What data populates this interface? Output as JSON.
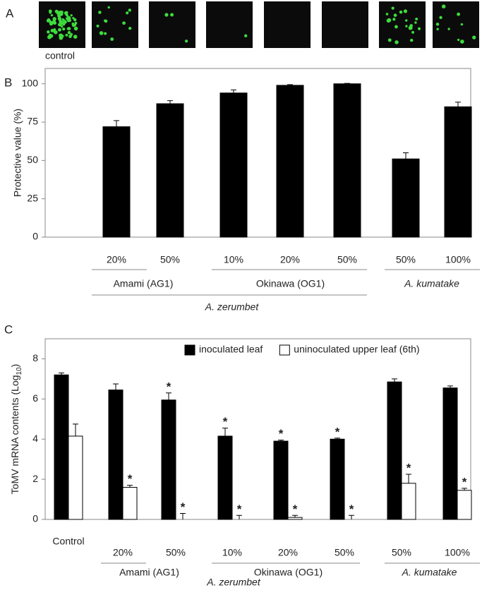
{
  "panel_labels": [
    "A",
    "B",
    "C"
  ],
  "panel_a": {
    "caption": "control"
  },
  "chart_data": [
    {
      "type": "bar",
      "ylabel": "Protective value (%)",
      "categories": [
        "20%",
        "50%",
        "10%",
        "20%",
        "50%",
        "50%",
        "100%"
      ],
      "group_labels": [
        "Amami (AG1)",
        "Okinawa (OG1)",
        "A. kumatake"
      ],
      "supergroup_label": "A. zerumbet",
      "values": [
        72,
        87,
        94,
        99,
        100,
        51,
        85
      ],
      "errors": [
        4,
        2,
        2,
        0.5,
        0.3,
        4,
        3
      ],
      "color": "#000000",
      "ylim": [
        0,
        110
      ],
      "yticks": [
        0,
        25,
        50,
        75,
        100
      ]
    },
    {
      "type": "bar",
      "ylabel": [
        "ToMV mRNA contents (Log",
        "10",
        ")"
      ],
      "categories": [
        "Control",
        "20%",
        "50%",
        "10%",
        "20%",
        "50%",
        "50%",
        "100%"
      ],
      "group_labels": [
        "Amami (AG1)",
        "Okinawa (OG1)",
        "A. kumatake"
      ],
      "supergroup_label": "A. zerumbet",
      "series": [
        {
          "name": "inoculated leaf",
          "color": "#000000",
          "values": [
            7.2,
            6.45,
            5.95,
            4.15,
            3.9,
            4.0,
            6.85,
            6.55
          ],
          "errors": [
            0.1,
            0.3,
            0.35,
            0.4,
            0.05,
            0.05,
            0.15,
            0.1
          ],
          "markers": [
            null,
            null,
            "*",
            "*",
            "*",
            "*",
            null,
            null
          ]
        },
        {
          "name": "uninoculated upper leaf (6th)",
          "color": "#ffffff",
          "values": [
            4.15,
            1.6,
            0,
            0,
            0.1,
            0,
            1.8,
            1.45
          ],
          "errors": [
            0.6,
            0.1,
            0.3,
            0.2,
            0.1,
            0.2,
            0.45,
            0.1
          ],
          "markers": [
            null,
            "*",
            "*",
            "*",
            "*",
            "*",
            "*",
            "*"
          ]
        }
      ],
      "legend": "upper right",
      "ylim": [
        0,
        9
      ],
      "yticks": [
        0,
        2,
        4,
        6,
        8
      ]
    }
  ]
}
